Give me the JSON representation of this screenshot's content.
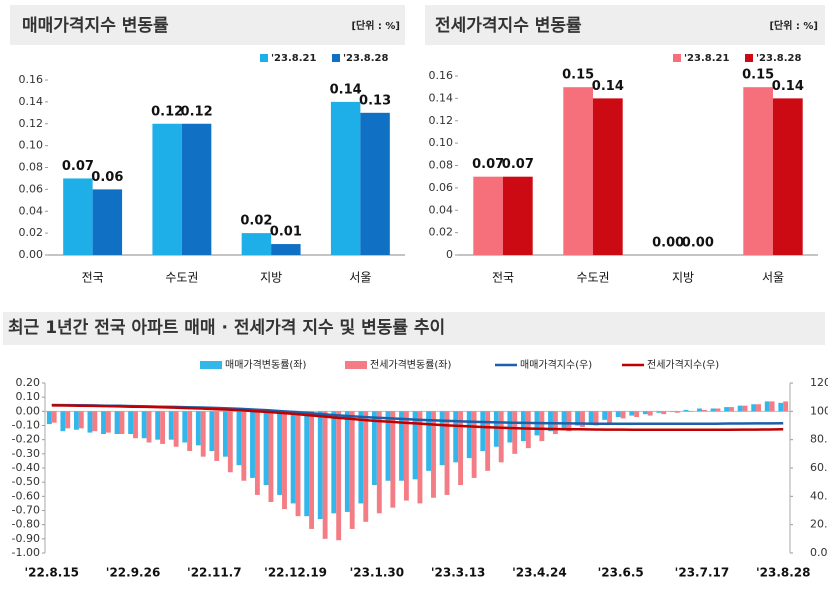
{
  "chart_data": [
    {
      "type": "bar",
      "title": "매매가격지수 변동률",
      "unit": "[단위 : %]",
      "categories": [
        "전국",
        "수도권",
        "지방",
        "서울"
      ],
      "series": [
        {
          "name": "'23.8.21",
          "color": "#1eaee8",
          "values": [
            0.07,
            0.12,
            0.02,
            0.14
          ],
          "value_labels": [
            "0.07",
            "0.12",
            "0.02",
            "0.14"
          ]
        },
        {
          "name": "'23.8.28",
          "color": "#1070c4",
          "values": [
            0.06,
            0.12,
            0.01,
            0.13
          ],
          "value_labels": [
            "0.06",
            "0.12",
            "0.01",
            "0.13"
          ]
        }
      ],
      "ylim": [
        0,
        0.16
      ],
      "yticks": [
        {
          "value": 0,
          "label": "0.00"
        },
        0.02,
        0.04,
        0.06,
        0.08,
        {
          "value": 0.1,
          "label": "0.10"
        },
        0.12,
        0.14,
        0.16
      ]
    },
    {
      "type": "bar",
      "title": "전세가격지수 변동률",
      "unit": "[단위 : %]",
      "categories": [
        "전국",
        "수도권",
        "지방",
        "서울"
      ],
      "series": [
        {
          "name": "'23.8.21",
          "color": "#f5707a",
          "values": [
            0.07,
            0.15,
            0.0,
            0.15
          ],
          "value_labels": [
            "0.07",
            "0.15",
            "0.00",
            "0.15"
          ]
        },
        {
          "name": "'23.8.28",
          "color": "#cc0a14",
          "values": [
            0.07,
            0.14,
            0.0,
            0.14
          ],
          "value_labels": [
            "0.07",
            "0.14",
            "0.00",
            "0.14"
          ]
        }
      ],
      "ylim": [
        0,
        0.16
      ],
      "yticks": [
        0,
        0.02,
        0.04,
        0.06,
        0.08,
        {
          "value": 0.1,
          "label": "0.10"
        },
        0.12,
        0.14,
        0.16
      ]
    },
    {
      "type": "combo",
      "title": "최근 1년간 전국 아파트 매매 · 전세가격 지수 및 변동률 추이",
      "categories": [
        "'22.8.15",
        null,
        null,
        null,
        null,
        null,
        "'22.9.26",
        null,
        null,
        null,
        null,
        null,
        "'22.11.7",
        null,
        null,
        null,
        null,
        null,
        "'22.12.19",
        null,
        null,
        null,
        null,
        null,
        "'23.1.30",
        null,
        null,
        null,
        null,
        null,
        "'23.3.13",
        null,
        null,
        null,
        null,
        null,
        "'23.4.24",
        null,
        null,
        null,
        null,
        null,
        "'23.6.5",
        null,
        null,
        null,
        null,
        null,
        "'23.7.17",
        null,
        null,
        null,
        null,
        null,
        "'23.8.28"
      ],
      "series": [
        {
          "name": "매매가격변동률(좌)",
          "type": "bar",
          "color": "#33b6ea",
          "values": [
            -0.09,
            -0.14,
            -0.13,
            -0.15,
            -0.16,
            -0.16,
            -0.16,
            -0.19,
            -0.2,
            -0.2,
            -0.22,
            -0.24,
            -0.28,
            -0.32,
            -0.38,
            -0.47,
            -0.52,
            -0.59,
            -0.65,
            -0.74,
            -0.76,
            -0.72,
            -0.71,
            -0.65,
            -0.52,
            -0.49,
            -0.49,
            -0.48,
            -0.42,
            -0.38,
            -0.36,
            -0.33,
            -0.28,
            -0.25,
            -0.22,
            -0.21,
            -0.17,
            -0.14,
            -0.12,
            -0.1,
            -0.08,
            -0.06,
            -0.04,
            -0.03,
            -0.02,
            -0.01,
            0.0,
            0.01,
            0.02,
            0.02,
            0.03,
            0.04,
            0.05,
            0.07,
            0.06
          ]
        },
        {
          "name": "전세가격변동률(좌)",
          "type": "bar",
          "color": "#f47c85",
          "values": [
            -0.08,
            -0.12,
            -0.12,
            -0.14,
            -0.15,
            -0.16,
            -0.19,
            -0.22,
            -0.23,
            -0.25,
            -0.28,
            -0.32,
            -0.35,
            -0.43,
            -0.49,
            -0.59,
            -0.64,
            -0.69,
            -0.74,
            -0.83,
            -0.9,
            -0.91,
            -0.83,
            -0.78,
            -0.72,
            -0.68,
            -0.63,
            -0.65,
            -0.61,
            -0.59,
            -0.52,
            -0.47,
            -0.42,
            -0.36,
            -0.3,
            -0.26,
            -0.21,
            -0.16,
            -0.14,
            -0.11,
            -0.1,
            -0.08,
            -0.05,
            -0.04,
            -0.03,
            -0.02,
            -0.01,
            0.0,
            0.01,
            0.02,
            0.03,
            0.04,
            0.05,
            0.07,
            0.07
          ]
        },
        {
          "name": "매매가격지수(우)",
          "type": "line",
          "axis": "y2",
          "color": "#1f5fa8",
          "values": [
            104.5,
            104.4,
            104.3,
            104.2,
            104.0,
            103.9,
            103.7,
            103.5,
            103.3,
            103.1,
            102.9,
            102.7,
            102.4,
            102.1,
            101.7,
            101.2,
            100.7,
            100.1,
            99.5,
            98.8,
            98.0,
            97.3,
            96.6,
            96.0,
            95.5,
            95.0,
            94.6,
            94.1,
            93.7,
            93.3,
            93.0,
            92.7,
            92.4,
            92.2,
            92.0,
            91.8,
            91.7,
            91.6,
            91.5,
            91.4,
            91.3,
            91.3,
            91.3,
            91.3,
            91.3,
            91.3,
            91.3,
            91.3,
            91.3,
            91.3,
            91.4,
            91.4,
            91.5,
            91.5,
            91.6
          ]
        },
        {
          "name": "전세가격지수(우)",
          "type": "line",
          "axis": "y2",
          "color": "#c00000",
          "values": [
            104.2,
            104.1,
            104.0,
            103.8,
            103.7,
            103.5,
            103.3,
            103.1,
            102.9,
            102.6,
            102.3,
            102.0,
            101.6,
            101.2,
            100.7,
            100.1,
            99.5,
            98.8,
            98.1,
            97.3,
            96.4,
            95.5,
            94.7,
            93.9,
            93.2,
            92.6,
            92.0,
            91.4,
            90.8,
            90.2,
            89.7,
            89.3,
            88.9,
            88.5,
            88.2,
            87.9,
            87.7,
            87.5,
            87.4,
            87.3,
            87.2,
            87.1,
            87.1,
            87.0,
            87.0,
            87.0,
            87.0,
            87.0,
            87.0,
            87.0,
            87.0,
            87.1,
            87.1,
            87.2,
            87.3
          ]
        }
      ],
      "ylim": [
        -1.0,
        0.2
      ],
      "yticks": [
        {
          "value": 0.2,
          "label": "0.20"
        },
        {
          "value": 0.1,
          "label": "0.10"
        },
        {
          "value": 0,
          "label": "0.00"
        },
        {
          "value": -0.1,
          "label": "-0.10"
        },
        {
          "value": -0.2,
          "label": "-0.20"
        },
        {
          "value": -0.3,
          "label": "-0.30"
        },
        {
          "value": -0.4,
          "label": "-0.40"
        },
        {
          "value": -0.5,
          "label": "-0.50"
        },
        {
          "value": -0.6,
          "label": "-0.60"
        },
        {
          "value": -0.7,
          "label": "-0.70"
        },
        {
          "value": -0.8,
          "label": "-0.80"
        },
        {
          "value": -0.9,
          "label": "-0.90"
        },
        {
          "value": -1.0,
          "label": "-1.00"
        }
      ],
      "y2lim": [
        0,
        120
      ],
      "y2ticks": [
        {
          "value": 0,
          "label": "0.0"
        },
        {
          "value": 20,
          "label": "20.0"
        },
        {
          "value": 40,
          "label": "40.0"
        },
        {
          "value": 60,
          "label": "60.0"
        },
        {
          "value": 80,
          "label": "80.0"
        },
        {
          "value": 100,
          "label": "100.0"
        },
        {
          "value": 120,
          "label": "120.0"
        }
      ]
    }
  ]
}
